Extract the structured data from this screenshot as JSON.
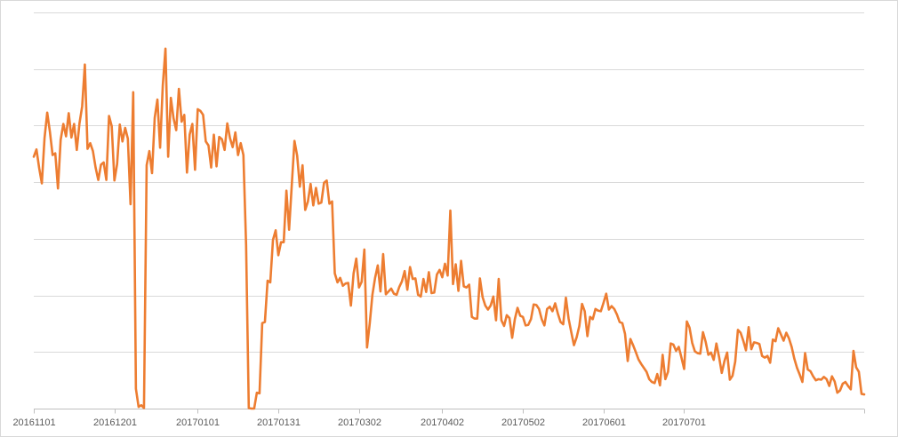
{
  "chart_data": {
    "type": "line",
    "title": "",
    "xlabel": "",
    "ylabel": "",
    "grid": true,
    "y_tick_labels_visible": false,
    "y_gridline_count": 7,
    "x_ticks": [
      "20161101",
      "20161201",
      "20170101",
      "20170131",
      "20170302",
      "20170402",
      "20170502",
      "20170601",
      "20170701"
    ],
    "colors": {
      "series": "#ED7D31",
      "grid": "#d9d9d9",
      "axis": "#bfbfbf",
      "text": "#595959"
    },
    "ylim": [
      0,
      7
    ],
    "series": [
      {
        "color": "#ED7D31",
        "x_start": "20161101",
        "x_step_days": 1,
        "values": [
          4.45,
          4.58,
          4.25,
          3.98,
          4.78,
          5.23,
          4.89,
          4.48,
          4.51,
          3.89,
          4.75,
          5.03,
          4.81,
          5.22,
          4.79,
          5.03,
          4.57,
          5.04,
          5.34,
          6.08,
          4.59,
          4.69,
          4.55,
          4.26,
          4.04,
          4.31,
          4.35,
          4.04,
          5.17,
          4.99,
          4.03,
          4.32,
          5.02,
          4.72,
          4.96,
          4.77,
          3.61,
          5.59,
          0.35,
          0.03,
          0.06,
          0.01,
          4.3,
          4.55,
          4.16,
          5.14,
          5.46,
          4.61,
          5.71,
          6.36,
          4.45,
          5.49,
          5.13,
          4.92,
          5.65,
          5.07,
          5.19,
          4.17,
          4.84,
          5.03,
          4.22,
          5.29,
          5.26,
          5.19,
          4.72,
          4.65,
          4.26,
          4.84,
          4.28,
          4.8,
          4.76,
          4.57,
          5.04,
          4.78,
          4.62,
          4.88,
          4.48,
          4.69,
          4.48,
          2.89,
          0.01,
          0.0,
          0.0,
          0.28,
          0.27,
          1.51,
          1.53,
          2.26,
          2.23,
          2.98,
          3.15,
          2.71,
          2.94,
          2.94,
          3.85,
          3.16,
          3.95,
          4.73,
          4.47,
          3.92,
          4.3,
          3.51,
          3.66,
          3.97,
          3.59,
          3.9,
          3.62,
          3.64,
          3.99,
          4.03,
          3.62,
          3.66,
          2.39,
          2.23,
          2.31,
          2.17,
          2.21,
          2.22,
          1.82,
          2.39,
          2.65,
          2.14,
          2.24,
          2.81,
          1.08,
          1.5,
          2.01,
          2.31,
          2.53,
          2.07,
          2.73,
          2.02,
          2.07,
          2.12,
          2.03,
          2.01,
          2.15,
          2.25,
          2.43,
          2.1,
          2.5,
          2.29,
          2.3,
          2.01,
          1.98,
          2.29,
          2.06,
          2.41,
          2.04,
          2.05,
          2.37,
          2.45,
          2.32,
          2.56,
          2.35,
          3.5,
          2.2,
          2.55,
          2.08,
          2.61,
          2.16,
          2.14,
          2.19,
          1.62,
          1.59,
          1.59,
          2.3,
          1.97,
          1.82,
          1.75,
          1.82,
          1.98,
          1.56,
          2.29,
          1.56,
          1.46,
          1.65,
          1.6,
          1.25,
          1.58,
          1.78,
          1.64,
          1.62,
          1.47,
          1.48,
          1.58,
          1.84,
          1.83,
          1.76,
          1.58,
          1.47,
          1.76,
          1.8,
          1.72,
          1.86,
          1.68,
          1.53,
          1.49,
          1.96,
          1.59,
          1.35,
          1.12,
          1.26,
          1.46,
          1.85,
          1.72,
          1.28,
          1.62,
          1.58,
          1.76,
          1.73,
          1.72,
          1.87,
          2.03,
          1.75,
          1.81,
          1.76,
          1.66,
          1.53,
          1.51,
          1.32,
          0.84,
          1.23,
          1.12,
          1.0,
          0.87,
          0.79,
          0.72,
          0.65,
          0.52,
          0.47,
          0.45,
          0.61,
          0.41,
          0.95,
          0.52,
          0.65,
          1.15,
          1.13,
          1.02,
          1.09,
          0.9,
          0.7,
          1.54,
          1.43,
          1.16,
          1.01,
          0.98,
          0.97,
          1.35,
          1.18,
          0.95,
          0.99,
          0.86,
          1.15,
          0.91,
          0.63,
          0.84,
          0.99,
          0.51,
          0.58,
          0.83,
          1.39,
          1.34,
          1.2,
          1.03,
          1.44,
          1.05,
          1.17,
          1.16,
          1.14,
          0.93,
          0.9,
          0.93,
          0.81,
          1.22,
          1.19,
          1.42,
          1.31,
          1.2,
          1.34,
          1.24,
          1.09,
          0.88,
          0.72,
          0.6,
          0.47,
          0.98,
          0.69,
          0.66,
          0.57,
          0.5,
          0.52,
          0.51,
          0.56,
          0.52,
          0.4,
          0.57,
          0.48,
          0.28,
          0.32,
          0.44,
          0.47,
          0.4,
          0.34,
          1.02,
          0.73,
          0.65,
          0.26,
          0.25
        ]
      }
    ]
  }
}
